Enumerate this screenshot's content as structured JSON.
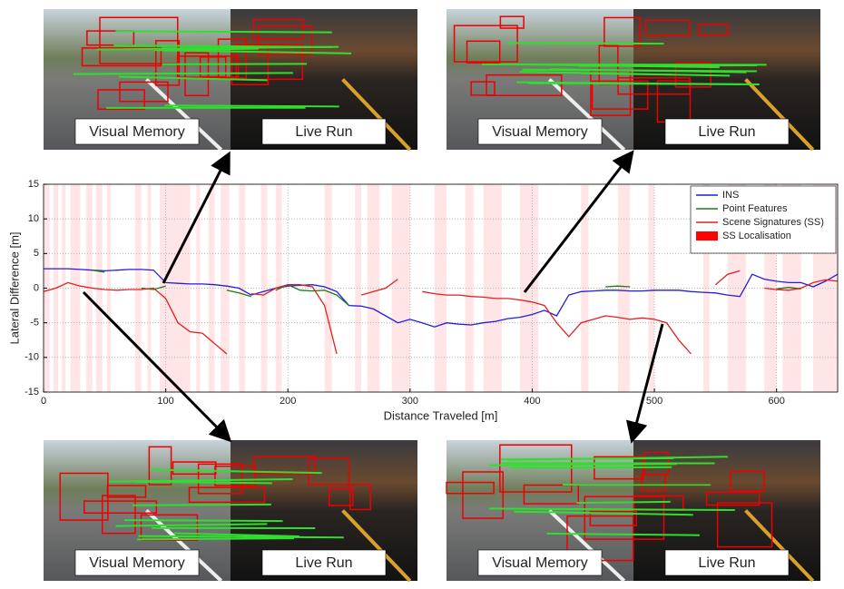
{
  "chart_data": {
    "type": "line",
    "xlabel": "Distance Traveled [m]",
    "ylabel": "Lateral Difference [m]",
    "x": [
      0,
      10,
      20,
      30,
      40,
      50,
      60,
      70,
      80,
      90,
      100,
      110,
      120,
      130,
      140,
      150,
      160,
      170,
      180,
      190,
      200,
      210,
      220,
      230,
      240,
      250,
      260,
      270,
      280,
      290,
      300,
      310,
      320,
      330,
      340,
      350,
      360,
      370,
      380,
      390,
      400,
      410,
      420,
      430,
      440,
      450,
      460,
      470,
      480,
      490,
      500,
      510,
      520,
      530,
      540,
      550,
      560,
      570,
      580,
      590,
      600,
      610,
      620,
      630,
      640,
      650
    ],
    "xlim": [
      0,
      650
    ],
    "xticks": [
      0,
      100,
      200,
      300,
      400,
      500,
      600
    ],
    "ylim": [
      -15,
      15
    ],
    "yticks": [
      -15,
      -10,
      -5,
      0,
      5,
      10,
      15
    ],
    "grid": true,
    "legend": "upper right",
    "series": [
      {
        "name": "INS",
        "color": "#1f1fe0",
        "values": [
          2.8,
          2.8,
          2.8,
          2.7,
          2.6,
          2.5,
          2.6,
          2.7,
          2.7,
          2.6,
          0.8,
          0.7,
          0.6,
          0.6,
          0.5,
          0.3,
          0,
          -1,
          -0.5,
          0,
          0.3,
          0.4,
          0.5,
          0.2,
          -0.5,
          -2.5,
          -2.6,
          -3,
          -4,
          -5,
          -4.5,
          -5,
          -5.6,
          -5,
          -5.2,
          -5.3,
          -5,
          -4.8,
          -4.4,
          -4.2,
          -3.8,
          -3.2,
          -4,
          -1,
          -0.5,
          -0.4,
          -0.3,
          -0.3,
          -0.4,
          -0.4,
          -0.3,
          -0.3,
          -0.3,
          -0.5,
          -0.6,
          -0.7,
          -1,
          -1.2,
          2,
          1.3,
          1,
          0.8,
          0.8,
          0.2,
          1,
          2
        ]
      },
      {
        "name": "Point Features",
        "color": "#1a7a1a",
        "values": [
          null,
          null,
          null,
          null,
          2.6,
          2.3,
          null,
          null,
          0,
          -0.2,
          0.3,
          null,
          null,
          null,
          null,
          -0.3,
          -0.7,
          -1.2,
          null,
          -0.3,
          0.5,
          -0.3,
          -0.4,
          -0.3,
          -1,
          -2.5,
          null,
          null,
          null,
          null,
          null,
          null,
          null,
          null,
          null,
          null,
          null,
          null,
          null,
          null,
          null,
          null,
          null,
          null,
          null,
          null,
          0.2,
          0.3,
          0.2,
          null,
          null,
          null,
          null,
          null,
          null,
          null,
          null,
          null,
          null,
          null,
          -0.1,
          0.1,
          -0.1,
          null,
          null,
          null
        ]
      },
      {
        "name": "Scene Signatures (SS)",
        "color": "#e02020",
        "values": [
          -0.5,
          0,
          0.8,
          0.3,
          0,
          -0.2,
          -0.3,
          -0.2,
          -0.2,
          0,
          -1.5,
          -5,
          -6.3,
          -6.5,
          -8,
          -9.5,
          null,
          -0.8,
          -1,
          0,
          0.5,
          0.5,
          0.2,
          -2.5,
          -9.5,
          null,
          -1,
          -0.5,
          0,
          1.3,
          null,
          -0.5,
          -0.8,
          -1,
          -1,
          -1.2,
          -1.3,
          -1.5,
          -1.5,
          -1.7,
          -2,
          -2.5,
          -5,
          -7,
          -5,
          -4.5,
          -4,
          -4.2,
          -4.5,
          -4.3,
          -4.5,
          -5,
          -7.5,
          -9.5,
          null,
          0.5,
          2,
          2.5,
          null,
          0,
          -0.2,
          -0.3,
          0,
          0.8,
          1.2,
          1
        ]
      }
    ],
    "localisation": {
      "name": "SS Localisation",
      "color": "#ff0000",
      "intervals": [
        [
          0,
          5
        ],
        [
          8,
          12
        ],
        [
          15,
          18
        ],
        [
          22,
          30
        ],
        [
          35,
          40
        ],
        [
          43,
          48
        ],
        [
          52,
          55
        ],
        [
          75,
          80
        ],
        [
          85,
          88
        ],
        [
          95,
          120
        ],
        [
          125,
          128
        ],
        [
          135,
          140
        ],
        [
          145,
          152
        ],
        [
          160,
          165
        ],
        [
          178,
          183
        ],
        [
          190,
          195
        ],
        [
          230,
          236
        ],
        [
          255,
          260
        ],
        [
          265,
          275
        ],
        [
          285,
          300
        ],
        [
          320,
          330
        ],
        [
          345,
          352
        ],
        [
          360,
          375
        ],
        [
          390,
          405
        ],
        [
          440,
          446
        ],
        [
          470,
          480
        ],
        [
          495,
          500
        ],
        [
          540,
          545
        ],
        [
          560,
          575
        ],
        [
          590,
          600
        ],
        [
          605,
          620
        ],
        [
          630,
          650
        ]
      ]
    }
  },
  "insets": [
    {
      "labels": [
        "Visual Memory",
        "Live Run"
      ]
    },
    {
      "labels": [
        "Visual Memory",
        "Live Run"
      ]
    },
    {
      "labels": [
        "Visual Memory",
        "Live Run"
      ]
    },
    {
      "labels": [
        "Visual Memory",
        "Live Run"
      ]
    }
  ]
}
